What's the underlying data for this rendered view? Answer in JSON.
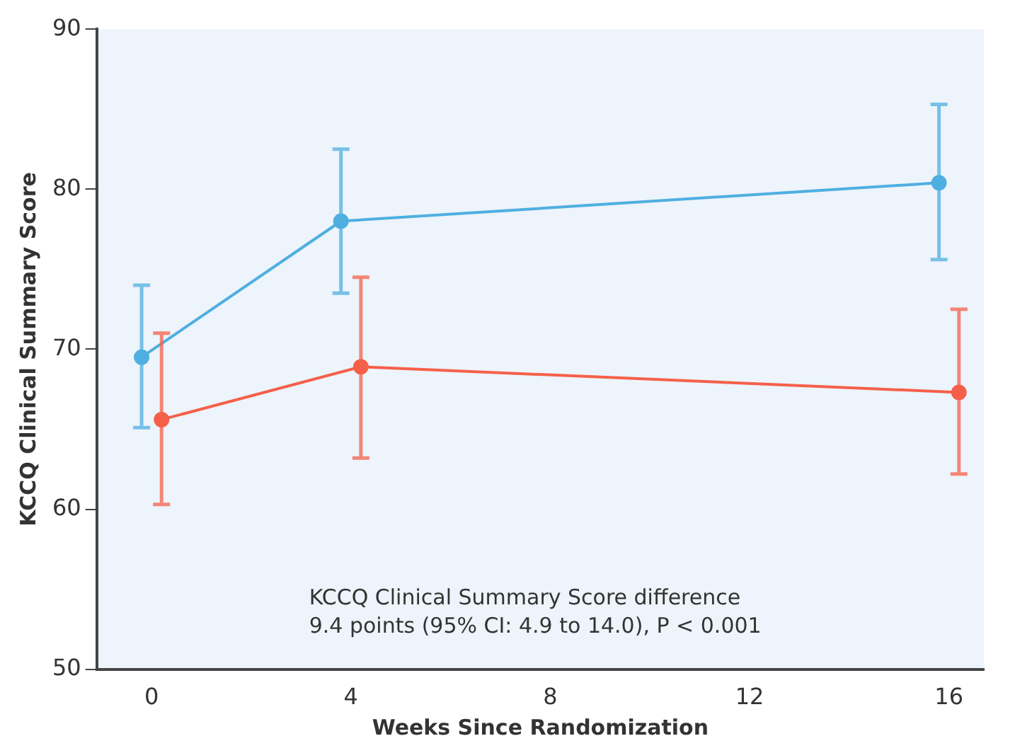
{
  "chart_data": {
    "type": "line",
    "xlabel": "Weeks Since Randomization",
    "ylabel": "KCCQ Clinical Summary Score",
    "xlim": [
      -1.1,
      16.7
    ],
    "xticks": [
      0,
      4,
      8,
      12,
      16
    ],
    "ylim": [
      50,
      90
    ],
    "yticks": [
      50,
      60,
      70,
      80,
      90
    ],
    "grid": false,
    "legend": false,
    "marker": "circle",
    "line_style": "solid",
    "series": [
      {
        "color": "#4fafe0",
        "x": [
          -0.2,
          3.8,
          15.8
        ],
        "values": [
          69.5,
          78.0,
          80.4
        ],
        "errors": [
          [
            65.1,
            74.0
          ],
          [
            73.5,
            82.5
          ],
          [
            75.6,
            85.3
          ]
        ]
      },
      {
        "color": "#f5604a",
        "x": [
          0.2,
          4.2,
          16.2
        ],
        "values": [
          65.6,
          68.9,
          67.3
        ],
        "errors": [
          [
            60.3,
            71.0
          ],
          [
            63.2,
            74.5
          ],
          [
            62.2,
            72.5
          ]
        ]
      }
    ],
    "annotations": [
      "KCCQ Clinical Summary Score difference",
      "9.4 points (95% CI: 4.9 to 14.0), P < 0.001"
    ]
  }
}
